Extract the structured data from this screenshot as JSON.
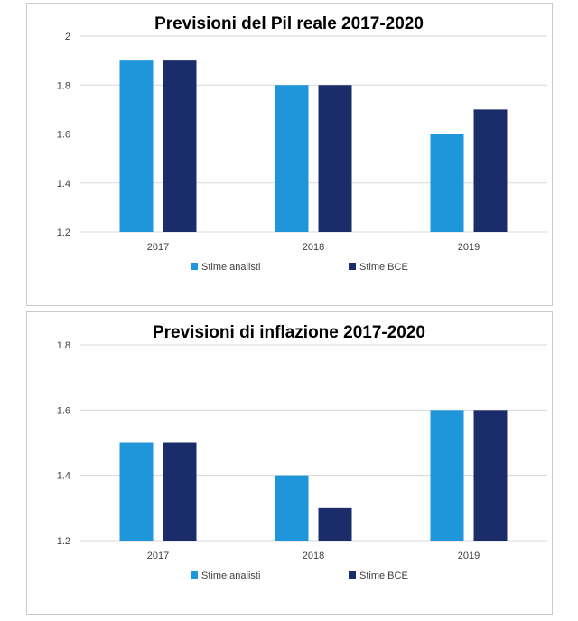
{
  "colors": {
    "series_1": "#1f96d9",
    "series_2": "#1b2c6b",
    "grid": "#d9d9d9",
    "text": "#404040"
  },
  "chart_data": [
    {
      "type": "bar",
      "title": "Previsioni del Pil reale 2017-2020",
      "categories": [
        "2017",
        "2018",
        "2019"
      ],
      "series": [
        {
          "name": "Stime analisti",
          "values": [
            1.9,
            1.8,
            1.6
          ]
        },
        {
          "name": "Stime BCE",
          "values": [
            1.9,
            1.8,
            1.7
          ]
        }
      ],
      "ylim": [
        1.2,
        2.0
      ],
      "yticks": [
        "1.2",
        "1.4",
        "1.6",
        "1.8",
        "2"
      ],
      "grid": true,
      "legend": "bottom"
    },
    {
      "type": "bar",
      "title": "Previsioni di inflazione 2017-2020",
      "categories": [
        "2017",
        "2018",
        "2019"
      ],
      "series": [
        {
          "name": "Stime analisti",
          "values": [
            1.5,
            1.4,
            1.6
          ]
        },
        {
          "name": "Stime BCE",
          "values": [
            1.5,
            1.3,
            1.6
          ]
        }
      ],
      "ylim": [
        1.2,
        1.8
      ],
      "yticks": [
        "1.2",
        "1.4",
        "1.6",
        "1.8"
      ],
      "grid": true,
      "legend": "bottom"
    }
  ]
}
